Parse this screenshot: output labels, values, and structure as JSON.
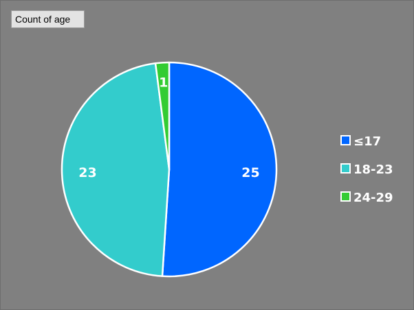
{
  "field_button": "Count of age",
  "chart_data": {
    "type": "pie",
    "title": "",
    "categories": [
      "≤17",
      "18-23",
      "24-29"
    ],
    "values": [
      25,
      23,
      1
    ],
    "colors": [
      "#0066ff",
      "#33cccc",
      "#33cc33"
    ],
    "legend_position": "right",
    "slice_border_color": "#ffffff"
  }
}
